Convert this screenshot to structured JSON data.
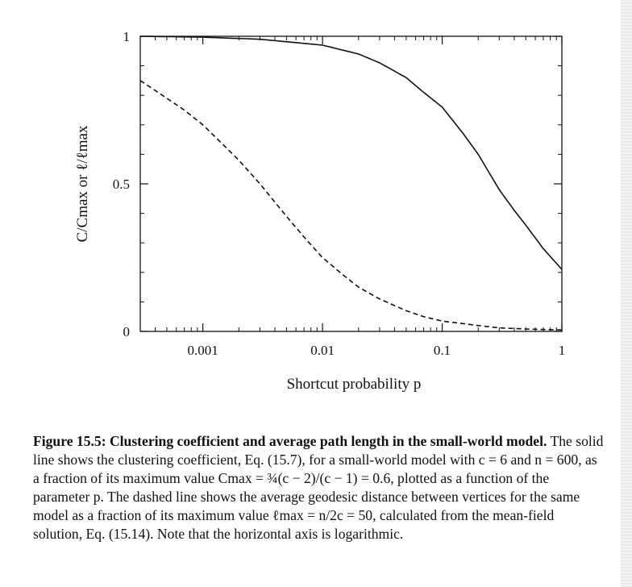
{
  "figure": {
    "caption_title": "Figure 15.5: Clustering coefficient and average path length in the small-world model.",
    "caption_body": "The solid line shows the clustering coefficient, Eq. (15.7), for a small-world model with c = 6 and n = 600, as a fraction of its maximum value Cmax = ¾(c − 2)/(c − 1) = 0.6, plotted as a function of the parameter p. The dashed line shows the average geodesic distance between vertices for the same model as a fraction of its maximum value ℓmax = n/2c = 50, calculated from the mean-field solution, Eq. (15.14). Note that the horizontal axis is logarithmic."
  },
  "chart_data": {
    "type": "line",
    "xscale": "log",
    "xlim": [
      0.0003,
      1
    ],
    "ylim": [
      0,
      1
    ],
    "xlabel": "Shortcut probability p",
    "ylabel": "C/Cmax  or  ℓ/ℓmax",
    "xticks": [
      {
        "value": 0.001,
        "label": "0.001"
      },
      {
        "value": 0.01,
        "label": "0.01"
      },
      {
        "value": 0.1,
        "label": "0.1"
      },
      {
        "value": 1,
        "label": "1"
      }
    ],
    "yticks": [
      {
        "value": 0,
        "label": "0"
      },
      {
        "value": 0.5,
        "label": "0.5"
      },
      {
        "value": 1,
        "label": "1"
      }
    ],
    "grid": false,
    "series": [
      {
        "style": "solid",
        "x": [
          0.0003,
          0.001,
          0.003,
          0.01,
          0.02,
          0.03,
          0.05,
          0.07,
          0.1,
          0.15,
          0.2,
          0.3,
          0.4,
          0.5,
          0.7,
          1
        ],
        "y": [
          1.0,
          0.997,
          0.99,
          0.97,
          0.94,
          0.91,
          0.86,
          0.81,
          0.76,
          0.67,
          0.6,
          0.48,
          0.41,
          0.36,
          0.28,
          0.21
        ]
      },
      {
        "style": "dashed",
        "x": [
          0.0003,
          0.0005,
          0.0007,
          0.001,
          0.0015,
          0.002,
          0.003,
          0.005,
          0.007,
          0.01,
          0.015,
          0.02,
          0.03,
          0.05,
          0.07,
          0.1,
          0.2,
          0.3,
          0.5,
          1
        ],
        "y": [
          0.85,
          0.79,
          0.75,
          0.7,
          0.63,
          0.58,
          0.5,
          0.39,
          0.32,
          0.25,
          0.19,
          0.15,
          0.11,
          0.07,
          0.05,
          0.035,
          0.02,
          0.012,
          0.008,
          0.005
        ]
      }
    ]
  }
}
